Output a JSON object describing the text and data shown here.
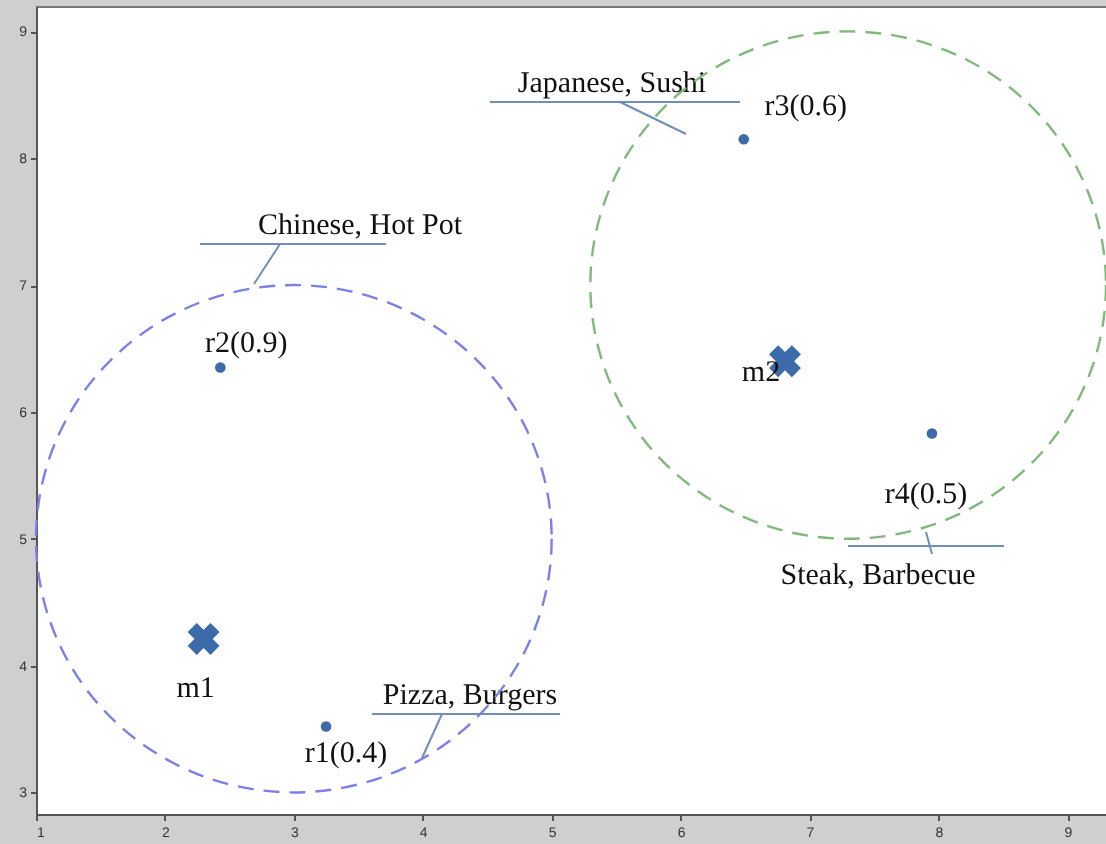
{
  "chart_data": {
    "type": "scatter",
    "xlim": [
      1,
      9.3
    ],
    "ylim": [
      2.83,
      9.2
    ],
    "xticks": [
      1,
      2,
      3,
      4,
      5,
      6,
      7,
      8,
      9
    ],
    "yticks": [
      3,
      4,
      5,
      6,
      7,
      8,
      9
    ],
    "grid": false,
    "series": [
      {
        "color": "#3d6aa8",
        "marker": "circle",
        "x": [
          3.25,
          2.43,
          6.49,
          7.95
        ],
        "values": [
          3.52,
          6.35,
          8.15,
          5.83
        ],
        "value_labels": [
          "r1(0.4)",
          "r2(0.9)",
          "r3(0.6)",
          "r4(0.5)"
        ]
      },
      {
        "color": "#3d6aa8",
        "marker": "cross",
        "x": [
          2.3,
          6.81
        ],
        "values": [
          4.21,
          6.4
        ],
        "value_labels": [
          "m1",
          "m2"
        ]
      }
    ],
    "annotations": [
      "Chinese, Hot Pot",
      "Pizza, Burgers",
      "Japanese, Sushi",
      "Steak, Barbecue"
    ]
  }
}
